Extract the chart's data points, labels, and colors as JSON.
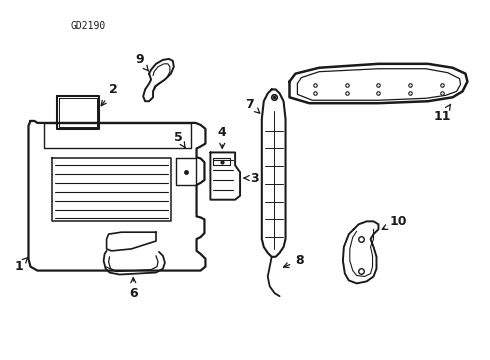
{
  "title": "GD2190",
  "bg_color": "#ffffff",
  "line_color": "#1a1a1a",
  "fig_width": 4.9,
  "fig_height": 3.6,
  "dpi": 100
}
